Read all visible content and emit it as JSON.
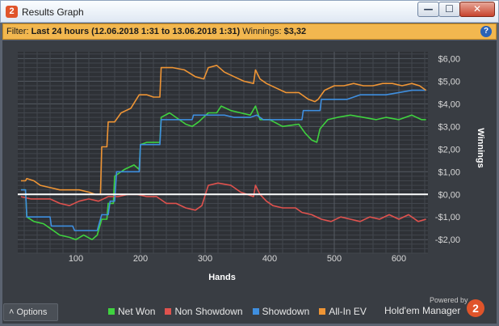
{
  "window": {
    "title": "Results Graph",
    "app_icon_glyph": "2",
    "minimize_glyph": "—",
    "maximize_glyph": "☐",
    "close_glyph": "✕"
  },
  "filter": {
    "label": "Filter:",
    "value": "Last 24 hours (12.06.2018 1:31 to 13.06.2018 1:31)",
    "winnings_label": "Winnings:",
    "winnings_value": "$3,32",
    "help_glyph": "?"
  },
  "footer": {
    "options_label": "Options",
    "options_glyph": "˄",
    "powered_by": "Powered by",
    "brand_name": "Hold'em Manager",
    "brand_logo_glyph": "2"
  },
  "chart_data": {
    "type": "line",
    "xlabel": "Hands",
    "ylabel": "Winnings",
    "xlim": [
      10,
      645
    ],
    "ylim": [
      -2.6,
      6.3
    ],
    "x_ticks": [
      100,
      200,
      300,
      400,
      500,
      600
    ],
    "x_tick_labels": [
      "100",
      "200",
      "300",
      "400",
      "500",
      "600"
    ],
    "y_ticks": [
      6,
      5,
      4,
      3,
      2,
      1,
      0,
      -1,
      -2
    ],
    "y_tick_labels": [
      "$6,00",
      "$5,00",
      "$4,00",
      "$3,00",
      "$2,00",
      "$1,00",
      "$0,00",
      "-$1,00",
      "-$2,00"
    ],
    "grid": true,
    "legend_position": "bottom",
    "series": [
      {
        "name": "Net Won",
        "color": "#3fd23f",
        "points": [
          [
            15,
            0.2
          ],
          [
            22,
            0.2
          ],
          [
            24,
            -1.0
          ],
          [
            35,
            -1.2
          ],
          [
            50,
            -1.3
          ],
          [
            60,
            -1.5
          ],
          [
            75,
            -1.8
          ],
          [
            90,
            -1.9
          ],
          [
            100,
            -2.0
          ],
          [
            112,
            -1.8
          ],
          [
            125,
            -2.0
          ],
          [
            133,
            -1.8
          ],
          [
            140,
            -1.1
          ],
          [
            148,
            -1.1
          ],
          [
            150,
            -0.4
          ],
          [
            158,
            -0.4
          ],
          [
            160,
            0.8
          ],
          [
            175,
            1.1
          ],
          [
            190,
            1.3
          ],
          [
            198,
            1.1
          ],
          [
            200,
            2.2
          ],
          [
            210,
            2.3
          ],
          [
            220,
            2.3
          ],
          [
            230,
            2.3
          ],
          [
            232,
            3.4
          ],
          [
            245,
            3.6
          ],
          [
            260,
            3.3
          ],
          [
            270,
            3.1
          ],
          [
            280,
            3.0
          ],
          [
            290,
            3.2
          ],
          [
            305,
            3.6
          ],
          [
            318,
            3.6
          ],
          [
            325,
            3.9
          ],
          [
            340,
            3.7
          ],
          [
            355,
            3.6
          ],
          [
            370,
            3.5
          ],
          [
            378,
            3.9
          ],
          [
            385,
            3.3
          ],
          [
            400,
            3.3
          ],
          [
            420,
            3.0
          ],
          [
            445,
            3.1
          ],
          [
            455,
            2.7
          ],
          [
            465,
            2.4
          ],
          [
            473,
            2.3
          ],
          [
            478,
            2.9
          ],
          [
            490,
            3.3
          ],
          [
            505,
            3.4
          ],
          [
            525,
            3.5
          ],
          [
            545,
            3.4
          ],
          [
            565,
            3.3
          ],
          [
            580,
            3.4
          ],
          [
            600,
            3.3
          ],
          [
            620,
            3.5
          ],
          [
            635,
            3.3
          ],
          [
            642,
            3.3
          ]
        ]
      },
      {
        "name": "Non Showdown",
        "color": "#e0524e",
        "points": [
          [
            15,
            -0.1
          ],
          [
            30,
            -0.2
          ],
          [
            45,
            -0.2
          ],
          [
            60,
            -0.2
          ],
          [
            75,
            -0.4
          ],
          [
            90,
            -0.5
          ],
          [
            105,
            -0.3
          ],
          [
            120,
            -0.2
          ],
          [
            135,
            -0.3
          ],
          [
            150,
            -0.1
          ],
          [
            165,
            -0.1
          ],
          [
            180,
            0.0
          ],
          [
            195,
            0.0
          ],
          [
            210,
            -0.1
          ],
          [
            225,
            -0.1
          ],
          [
            240,
            -0.4
          ],
          [
            255,
            -0.4
          ],
          [
            270,
            -0.6
          ],
          [
            285,
            -0.7
          ],
          [
            295,
            -0.5
          ],
          [
            305,
            0.4
          ],
          [
            320,
            0.5
          ],
          [
            340,
            0.4
          ],
          [
            355,
            0.1
          ],
          [
            365,
            0.0
          ],
          [
            375,
            -0.1
          ],
          [
            378,
            0.4
          ],
          [
            385,
            0.0
          ],
          [
            395,
            -0.3
          ],
          [
            405,
            -0.5
          ],
          [
            420,
            -0.6
          ],
          [
            440,
            -0.6
          ],
          [
            450,
            -0.8
          ],
          [
            465,
            -0.9
          ],
          [
            480,
            -1.1
          ],
          [
            495,
            -1.2
          ],
          [
            510,
            -1.0
          ],
          [
            525,
            -1.1
          ],
          [
            540,
            -1.2
          ],
          [
            555,
            -1.0
          ],
          [
            570,
            -1.1
          ],
          [
            585,
            -0.9
          ],
          [
            600,
            -1.1
          ],
          [
            615,
            -0.9
          ],
          [
            630,
            -1.2
          ],
          [
            642,
            -1.1
          ]
        ]
      },
      {
        "name": "Showdown",
        "color": "#3f8fe0",
        "points": [
          [
            15,
            0.2
          ],
          [
            22,
            0.2
          ],
          [
            24,
            -1.0
          ],
          [
            45,
            -1.0
          ],
          [
            60,
            -1.0
          ],
          [
            62,
            -1.4
          ],
          [
            80,
            -1.4
          ],
          [
            95,
            -1.4
          ],
          [
            98,
            -1.6
          ],
          [
            125,
            -1.6
          ],
          [
            133,
            -1.6
          ],
          [
            140,
            -0.9
          ],
          [
            150,
            -0.9
          ],
          [
            153,
            -0.3
          ],
          [
            160,
            -0.3
          ],
          [
            163,
            1.0
          ],
          [
            185,
            1.0
          ],
          [
            198,
            1.0
          ],
          [
            200,
            2.2
          ],
          [
            230,
            2.2
          ],
          [
            232,
            3.3
          ],
          [
            270,
            3.3
          ],
          [
            280,
            3.3
          ],
          [
            282,
            3.5
          ],
          [
            330,
            3.5
          ],
          [
            345,
            3.4
          ],
          [
            370,
            3.4
          ],
          [
            380,
            3.5
          ],
          [
            390,
            3.3
          ],
          [
            440,
            3.3
          ],
          [
            450,
            3.3
          ],
          [
            452,
            3.7
          ],
          [
            478,
            3.7
          ],
          [
            480,
            4.2
          ],
          [
            520,
            4.2
          ],
          [
            540,
            4.4
          ],
          [
            580,
            4.4
          ],
          [
            600,
            4.5
          ],
          [
            620,
            4.6
          ],
          [
            642,
            4.6
          ]
        ]
      },
      {
        "name": "All-In EV",
        "color": "#ef9535",
        "points": [
          [
            15,
            0.6
          ],
          [
            22,
            0.6
          ],
          [
            24,
            0.7
          ],
          [
            35,
            0.6
          ],
          [
            45,
            0.4
          ],
          [
            60,
            0.3
          ],
          [
            75,
            0.2
          ],
          [
            90,
            0.2
          ],
          [
            105,
            0.2
          ],
          [
            120,
            0.1
          ],
          [
            130,
            0.0
          ],
          [
            138,
            0.0
          ],
          [
            140,
            2.1
          ],
          [
            148,
            2.1
          ],
          [
            150,
            3.2
          ],
          [
            160,
            3.2
          ],
          [
            170,
            3.6
          ],
          [
            185,
            3.8
          ],
          [
            198,
            4.4
          ],
          [
            210,
            4.4
          ],
          [
            220,
            4.3
          ],
          [
            230,
            4.3
          ],
          [
            232,
            5.6
          ],
          [
            250,
            5.6
          ],
          [
            268,
            5.5
          ],
          [
            285,
            5.2
          ],
          [
            298,
            5.1
          ],
          [
            305,
            5.6
          ],
          [
            318,
            5.7
          ],
          [
            330,
            5.4
          ],
          [
            345,
            5.2
          ],
          [
            360,
            5.0
          ],
          [
            375,
            4.9
          ],
          [
            378,
            5.5
          ],
          [
            385,
            5.1
          ],
          [
            395,
            4.9
          ],
          [
            410,
            4.7
          ],
          [
            425,
            4.5
          ],
          [
            445,
            4.5
          ],
          [
            460,
            4.2
          ],
          [
            470,
            4.1
          ],
          [
            475,
            4.2
          ],
          [
            485,
            4.6
          ],
          [
            500,
            4.8
          ],
          [
            515,
            4.8
          ],
          [
            530,
            4.9
          ],
          [
            545,
            4.8
          ],
          [
            560,
            4.8
          ],
          [
            575,
            4.9
          ],
          [
            590,
            4.9
          ],
          [
            605,
            4.8
          ],
          [
            620,
            4.9
          ],
          [
            632,
            4.8
          ],
          [
            642,
            4.6
          ]
        ]
      }
    ]
  }
}
